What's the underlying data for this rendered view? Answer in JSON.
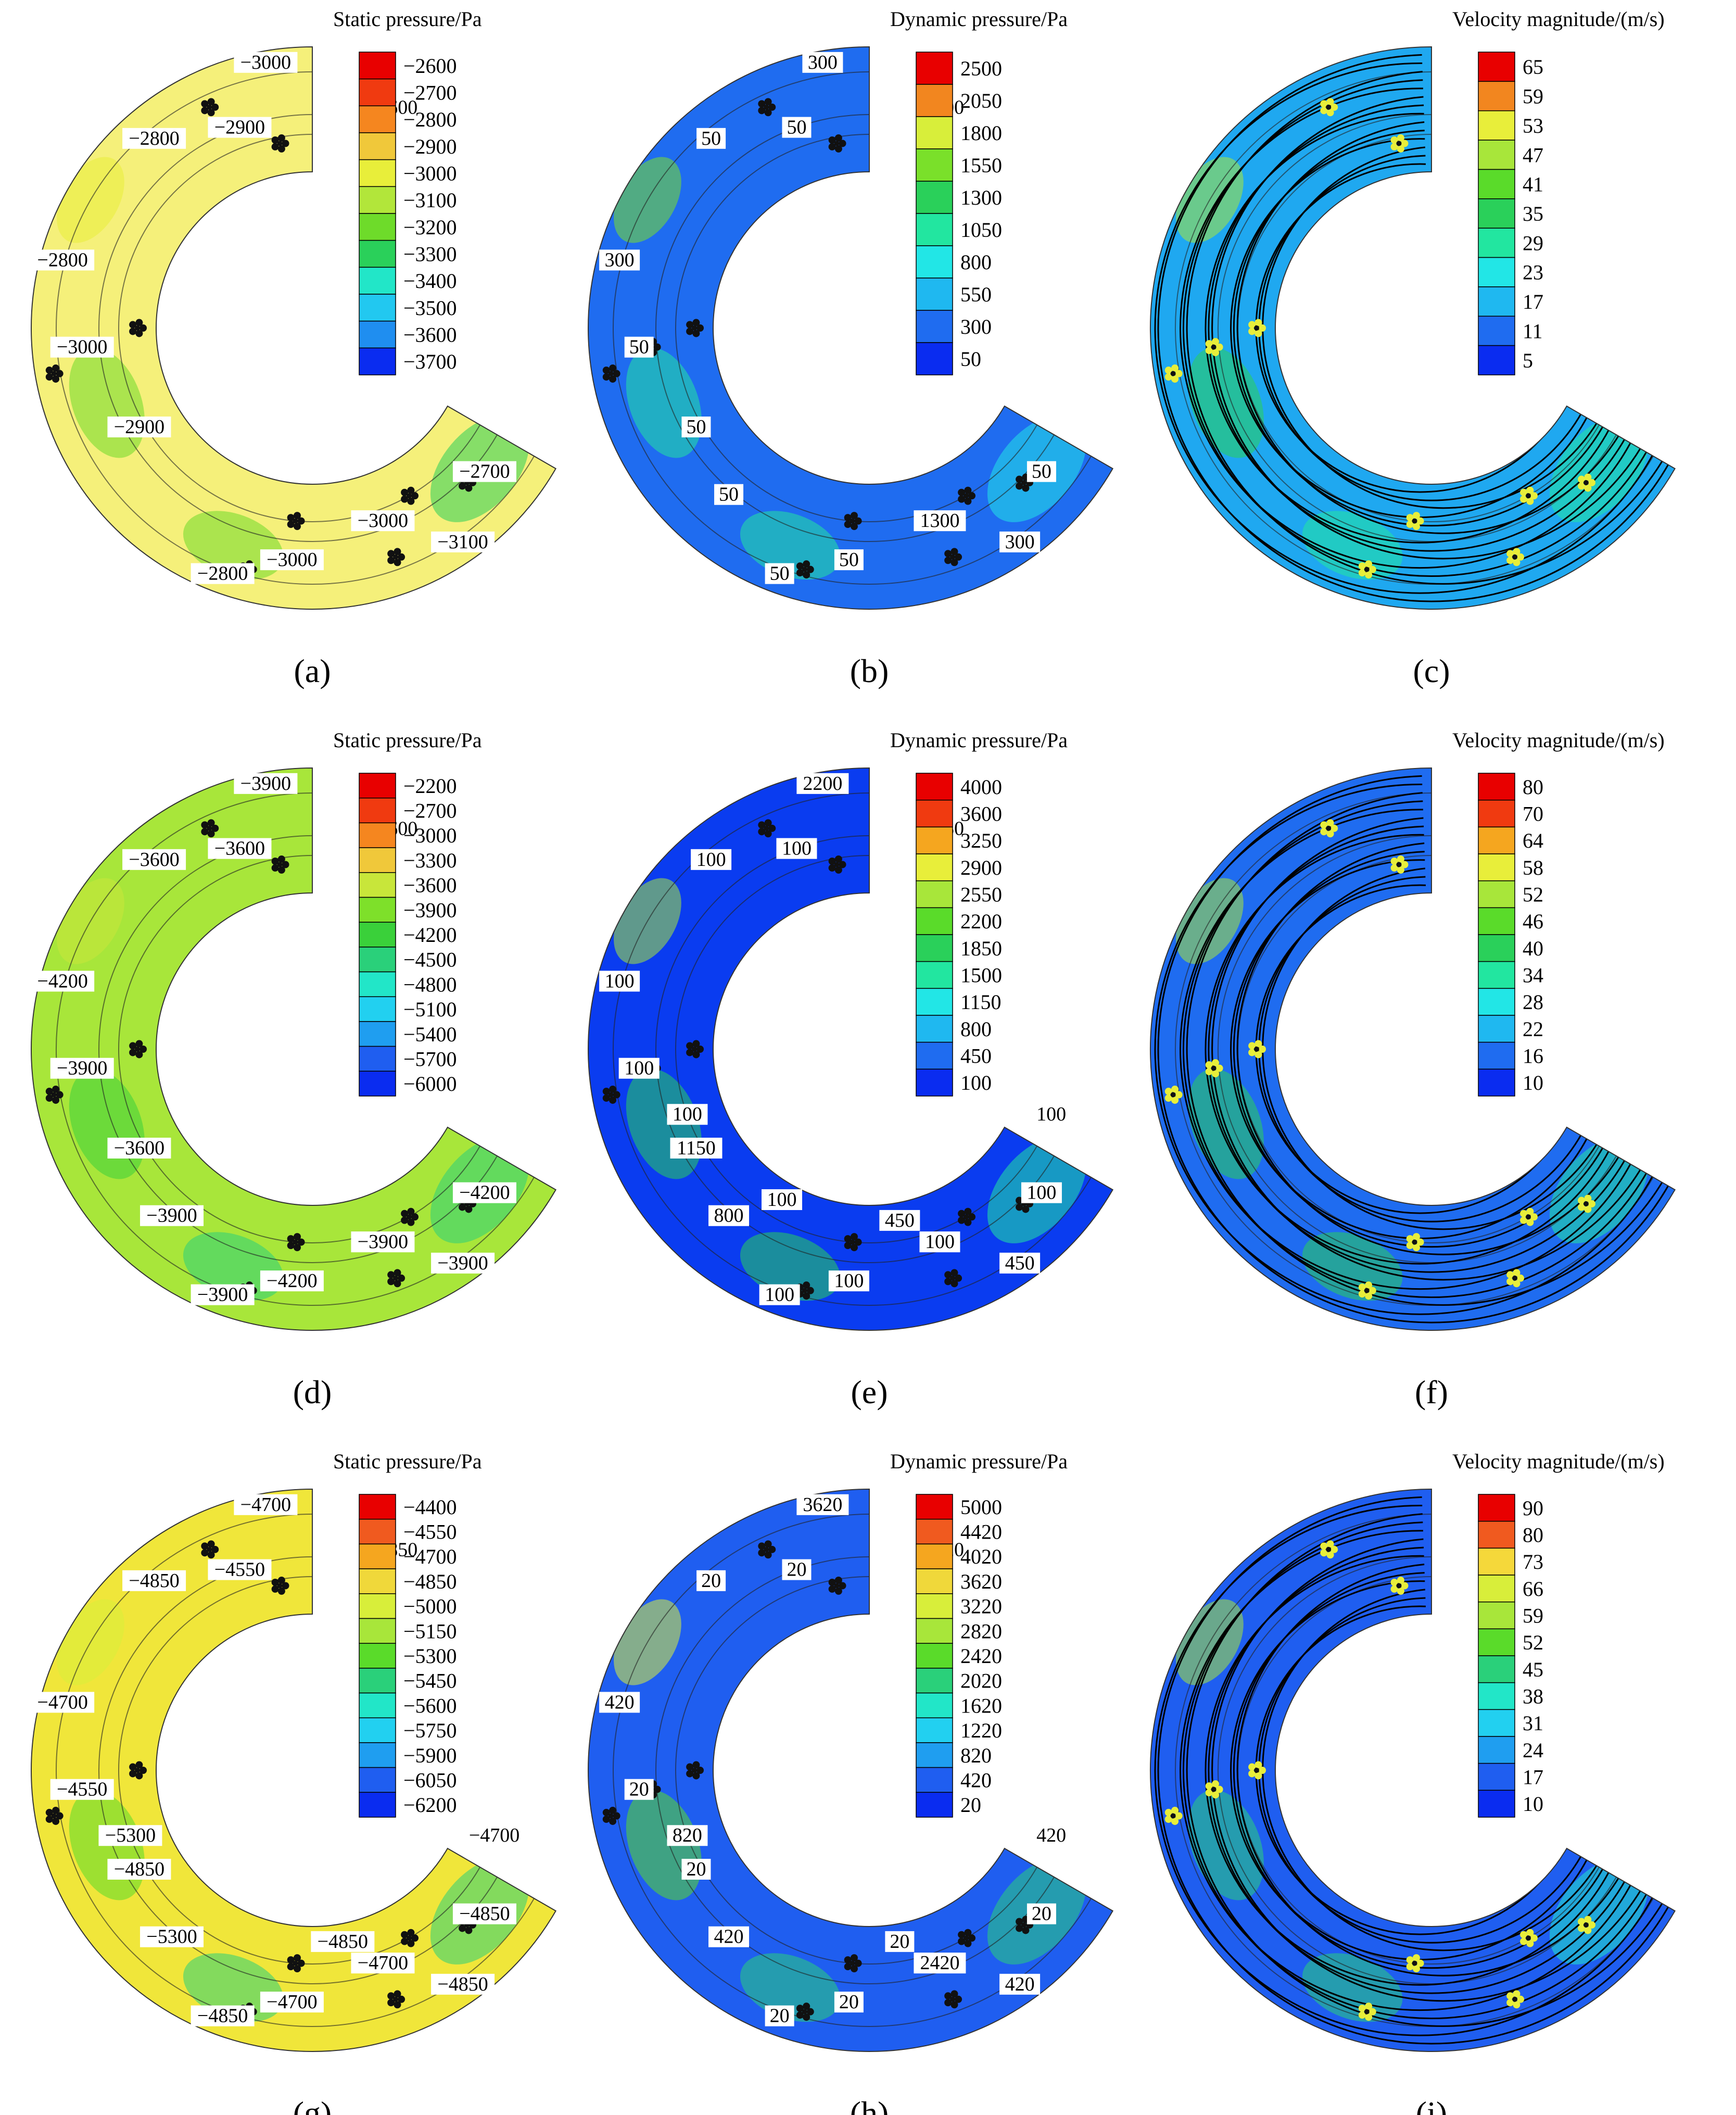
{
  "colors": {
    "yellow_field": "#f2f27a",
    "blue_field": "#1f5fe6",
    "deep_blue": "#0a2cf0",
    "light_blue": "#1fa8f0",
    "cyan": "#22e6e6",
    "orange": "#f28c3a",
    "red": "#e80000",
    "green": "#5adb2a",
    "streamline": "#000000"
  },
  "panels": [
    {
      "letter": "(a)",
      "kind": "static",
      "field_color": "#f5f07a",
      "legend": {
        "title": "Static pressure/Pa",
        "labels": [
          "−2600",
          "−2700",
          "−2800",
          "−2900",
          "−3000",
          "−3100",
          "−3200",
          "−3300",
          "−3400",
          "−3500",
          "−3600",
          "−3700"
        ],
        "colors": [
          "#e80000",
          "#f03a10",
          "#f5861f",
          "#f0c83a",
          "#e8ee3a",
          "#b2e63a",
          "#6edb2a",
          "#2ad05a",
          "#22e6c8",
          "#22c8f0",
          "#1f8ef0",
          "#0a2cf0"
        ]
      },
      "contour_labels": [
        "−2600",
        "−3000",
        "−2800",
        "−2900",
        "−2800",
        "−3000",
        "−2900",
        "−2700",
        "−3000",
        "−3000",
        "−3100",
        "−2800"
      ]
    },
    {
      "letter": "(b)",
      "kind": "dynamic",
      "field_color": "#1f6cf0",
      "legend": {
        "title": "Dynamic pressure/Pa",
        "labels": [
          "2500",
          "2050",
          "1800",
          "1550",
          "1300",
          "1050",
          "800",
          "550",
          "300",
          "50"
        ],
        "colors": [
          "#e80000",
          "#f2861f",
          "#d8ee3a",
          "#7ae02a",
          "#2ad05a",
          "#22e6a0",
          "#22e6e6",
          "#1fb8f0",
          "#1f6cf0",
          "#0a2cf0"
        ]
      },
      "contour_labels": [
        "300",
        "300",
        "50",
        "50",
        "300",
        "50",
        "50",
        "50",
        "50",
        "1300",
        "300",
        "50",
        "50"
      ]
    },
    {
      "letter": "(c)",
      "kind": "velocity",
      "field_color": "#1fa8f0",
      "legend": {
        "title": "Velocity magnitude/(m/s)",
        "labels": [
          "65",
          "59",
          "53",
          "47",
          "41",
          "35",
          "29",
          "23",
          "17",
          "11",
          "5"
        ],
        "colors": [
          "#e80000",
          "#f2861f",
          "#e8ee3a",
          "#a8e63a",
          "#5adb2a",
          "#2ad05a",
          "#22e6a0",
          "#22e6e6",
          "#1fb8f0",
          "#1f6cf0",
          "#0a2cf0"
        ]
      },
      "contour_labels": []
    },
    {
      "letter": "(d)",
      "kind": "static",
      "field_color": "#a8e63a",
      "legend": {
        "title": "Static pressure/Pa",
        "labels": [
          "−2200",
          "−2700",
          "−3000",
          "−3300",
          "−3600",
          "−3900",
          "−4200",
          "−4500",
          "−4800",
          "−5100",
          "−5400",
          "−5700",
          "−6000"
        ],
        "colors": [
          "#e80000",
          "#f03a10",
          "#f5861f",
          "#f0c83a",
          "#c8e63a",
          "#7ee02a",
          "#3ad03a",
          "#2ad07a",
          "#22e6c8",
          "#22d0f0",
          "#1f9ef0",
          "#1f5ef0",
          "#0a2cf0"
        ]
      },
      "contour_labels": [
        "−3600",
        "−3900",
        "−3600",
        "−3600",
        "−4200",
        "−3900",
        "−3600",
        "−4200",
        "−4200",
        "−3900",
        "−3900",
        "−3900",
        "−3900"
      ]
    },
    {
      "letter": "(e)",
      "kind": "dynamic",
      "field_color": "#0a3cf0",
      "legend": {
        "title": "Dynamic pressure/Pa",
        "labels": [
          "4000",
          "3600",
          "3250",
          "2900",
          "2550",
          "2200",
          "1850",
          "1500",
          "1150",
          "800",
          "450",
          "100"
        ],
        "colors": [
          "#e80000",
          "#f03a10",
          "#f5a61f",
          "#e8ee3a",
          "#a8e63a",
          "#5adb2a",
          "#2ad05a",
          "#22e6a0",
          "#22e6e6",
          "#1fb8f0",
          "#1f6cf0",
          "#0a2cf0"
        ]
      },
      "contour_labels": [
        "450",
        "2200",
        "100",
        "100",
        "100",
        "100",
        "1150",
        "100",
        "100",
        "100",
        "450",
        "100",
        "800",
        "100",
        "100",
        "450",
        "100"
      ]
    },
    {
      "letter": "(f)",
      "kind": "velocity",
      "field_color": "#1f6cf0",
      "legend": {
        "title": "Velocity magnitude/(m/s)",
        "labels": [
          "80",
          "70",
          "64",
          "58",
          "52",
          "46",
          "40",
          "34",
          "28",
          "22",
          "16",
          "10"
        ],
        "colors": [
          "#e80000",
          "#f03a10",
          "#f5a61f",
          "#e8ee3a",
          "#a8e63a",
          "#5adb2a",
          "#2ad05a",
          "#22e6a0",
          "#22e6e6",
          "#1fb8f0",
          "#1f6cf0",
          "#0a2cf0"
        ]
      },
      "contour_labels": []
    },
    {
      "letter": "(g)",
      "kind": "static",
      "field_color": "#f0e63a",
      "legend": {
        "title": "Static pressure/Pa",
        "labels": [
          "−4400",
          "−4550",
          "−4700",
          "−4850",
          "−5000",
          "−5150",
          "−5300",
          "−5450",
          "−5600",
          "−5750",
          "−5900",
          "−6050",
          "−6200"
        ],
        "colors": [
          "#e80000",
          "#f05a1f",
          "#f5a61f",
          "#f0d83a",
          "#d8ee3a",
          "#a8e63a",
          "#5adb2a",
          "#2ad07a",
          "#22e6c8",
          "#22d0f0",
          "#1f9ef0",
          "#1f5ef0",
          "#0a2cf0"
        ]
      },
      "contour_labels": [
        "−4850",
        "−4700",
        "−4850",
        "−4550",
        "−4700",
        "−4550",
        "−4850",
        "−4850",
        "−4700",
        "−4700",
        "−4850",
        "−4850",
        "−5300",
        "−5300",
        "−4700",
        "−4850"
      ]
    },
    {
      "letter": "(h)",
      "kind": "dynamic",
      "field_color": "#1f5ef0",
      "legend": {
        "title": "Dynamic pressure/Pa",
        "labels": [
          "5000",
          "4420",
          "4020",
          "3620",
          "3220",
          "2820",
          "2420",
          "2020",
          "1620",
          "1220",
          "820",
          "420",
          "20"
        ],
        "colors": [
          "#e80000",
          "#f05a1f",
          "#f5a61f",
          "#f0d83a",
          "#d8ee3a",
          "#a8e63a",
          "#5adb2a",
          "#2ad07a",
          "#22e6c8",
          "#22d0f0",
          "#1f9ef0",
          "#1f5ef0",
          "#0a2cf0"
        ]
      },
      "contour_labels": [
        "420",
        "3620",
        "20",
        "20",
        "420",
        "20",
        "20",
        "20",
        "20",
        "2420",
        "420",
        "20",
        "420",
        "820",
        "420",
        "20"
      ]
    },
    {
      "letter": "(i)",
      "kind": "velocity",
      "field_color": "#1f5ef0",
      "legend": {
        "title": "Velocity magnitude/(m/s)",
        "labels": [
          "90",
          "80",
          "73",
          "66",
          "59",
          "52",
          "45",
          "38",
          "31",
          "24",
          "17",
          "10"
        ],
        "colors": [
          "#e80000",
          "#f05a1f",
          "#f5d83a",
          "#d8ee3a",
          "#a8e63a",
          "#5adb2a",
          "#2ad07a",
          "#22e6c8",
          "#22d0f0",
          "#1f9ef0",
          "#1f5ef0",
          "#0a2cf0"
        ]
      },
      "contour_labels": []
    }
  ]
}
